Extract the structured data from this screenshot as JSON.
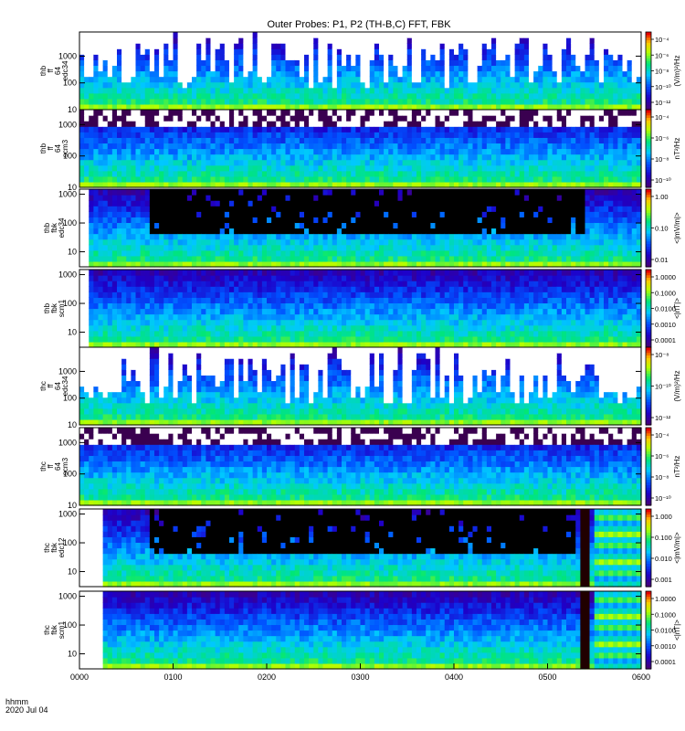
{
  "title": "Outer Probes: P1, P2 (TH-B,C) FFT, FBK",
  "footer": {
    "line1": "hhmm",
    "line2": "2020 Jul 04"
  },
  "x_tick_labels": [
    "0000",
    "0100",
    "0200",
    "0300",
    "0400",
    "0500",
    "0600"
  ],
  "chart_data": [
    {
      "type": "heatmap",
      "panel": "thb ff 64 edc34",
      "ylabel_lines": [
        "thb",
        "ff",
        "64",
        "edc34"
      ],
      "ylog": true,
      "ylim": [
        10,
        8000
      ],
      "y_ticks": [
        "10",
        "100",
        "1000"
      ],
      "colorbar_ticks": [
        "10⁻⁴",
        "10⁻⁶",
        "10⁻⁸",
        "10⁻¹⁰",
        "10⁻¹²"
      ],
      "colorbar_label": "(V/m)²/Hz",
      "data_start": 0.0,
      "dense_top_frac": 0.0,
      "bursty": true,
      "black_band": null,
      "blocks_after": null,
      "dark_spike": null
    },
    {
      "type": "heatmap",
      "panel": "thb ff 64 scm3",
      "ylabel_lines": [
        "thb",
        "ff",
        "64",
        "scm3"
      ],
      "ylog": true,
      "ylim": [
        10,
        3000
      ],
      "y_ticks": [
        "10",
        "100",
        "1000"
      ],
      "colorbar_ticks": [
        "10⁻⁴",
        "10⁻⁶",
        "10⁻⁸",
        "10⁻¹⁰"
      ],
      "colorbar_label": "nT²/Hz",
      "data_start": 0.0,
      "dense_top_frac": 0.9,
      "bursty": false,
      "black_band": null,
      "blocks_after": null,
      "dark_spike": null
    },
    {
      "type": "heatmap",
      "panel": "thb fbk edc34",
      "ylabel_lines": [
        "thb",
        "fbk",
        "edc34"
      ],
      "ylog": true,
      "ylim": [
        3,
        1500
      ],
      "y_ticks": [
        "10",
        "100",
        "1000"
      ],
      "colorbar_ticks": [
        "1.00",
        "0.10",
        "0.01"
      ],
      "colorbar_label": "<|mV/m|>",
      "data_start": 0.02,
      "dense_top_frac": 0.0,
      "bursty": false,
      "black_band": [
        0.12,
        0.9
      ],
      "blocks_after": null,
      "dark_spike": null
    },
    {
      "type": "heatmap",
      "panel": "thb fbk scm1",
      "ylabel_lines": [
        "thb",
        "fbk",
        "scm1"
      ],
      "ylog": true,
      "ylim": [
        3,
        1500
      ],
      "y_ticks": [
        "10",
        "100",
        "1000"
      ],
      "colorbar_ticks": [
        "1.0000",
        "0.1000",
        "0.0100",
        "0.0010",
        "0.0001"
      ],
      "colorbar_label": "<|nT|>",
      "data_start": 0.02,
      "dense_top_frac": 0.0,
      "bursty": false,
      "black_band": null,
      "blocks_after": null,
      "dark_spike": null
    },
    {
      "type": "heatmap",
      "panel": "thc ff 64 edc34",
      "ylabel_lines": [
        "thc",
        "ff",
        "64",
        "edc34"
      ],
      "ylog": true,
      "ylim": [
        10,
        8000
      ],
      "y_ticks": [
        "10",
        "100",
        "1000"
      ],
      "colorbar_ticks": [
        "10⁻⁸",
        "10⁻¹⁰",
        "10⁻¹²"
      ],
      "colorbar_label": "(V/m)²/Hz",
      "data_start": 0.0,
      "dense_top_frac": 0.0,
      "bursty": true,
      "black_band": null,
      "blocks_after": null,
      "dark_spike": null
    },
    {
      "type": "heatmap",
      "panel": "thc ff 64 scm3",
      "ylabel_lines": [
        "thc",
        "ff",
        "64",
        "scm3"
      ],
      "ylog": true,
      "ylim": [
        10,
        3000
      ],
      "y_ticks": [
        "10",
        "100",
        "1000"
      ],
      "colorbar_ticks": [
        "10⁻⁴",
        "10⁻⁶",
        "10⁻⁸",
        "10⁻¹⁰"
      ],
      "colorbar_label": "nT²/Hz",
      "data_start": 0.0,
      "dense_top_frac": 0.9,
      "bursty": false,
      "black_band": null,
      "blocks_after": null,
      "dark_spike": null
    },
    {
      "type": "heatmap",
      "panel": "thc fbk edc12",
      "ylabel_lines": [
        "thc",
        "fbk",
        "edc12"
      ],
      "ylog": true,
      "ylim": [
        3,
        1500
      ],
      "y_ticks": [
        "10",
        "100",
        "1000"
      ],
      "colorbar_ticks": [
        "1.000",
        "0.100",
        "0.010",
        "0.001"
      ],
      "colorbar_label": "<|mV/m|>",
      "data_start": 0.045,
      "dense_top_frac": 0.0,
      "bursty": false,
      "black_band": [
        0.12,
        0.88
      ],
      "blocks_after": 0.91,
      "dark_spike": 0.895
    },
    {
      "type": "heatmap",
      "panel": "thc fbk scm1",
      "ylabel_lines": [
        "thc",
        "fbk",
        "scm1"
      ],
      "ylog": true,
      "ylim": [
        3,
        1500
      ],
      "y_ticks": [
        "10",
        "100",
        "1000"
      ],
      "colorbar_ticks": [
        "1.0000",
        "0.1000",
        "0.0100",
        "0.0010",
        "0.0001"
      ],
      "colorbar_label": "<|nT|>",
      "data_start": 0.045,
      "dense_top_frac": 0.0,
      "bursty": false,
      "black_band": null,
      "blocks_after": 0.91,
      "dark_spike": 0.895
    }
  ]
}
